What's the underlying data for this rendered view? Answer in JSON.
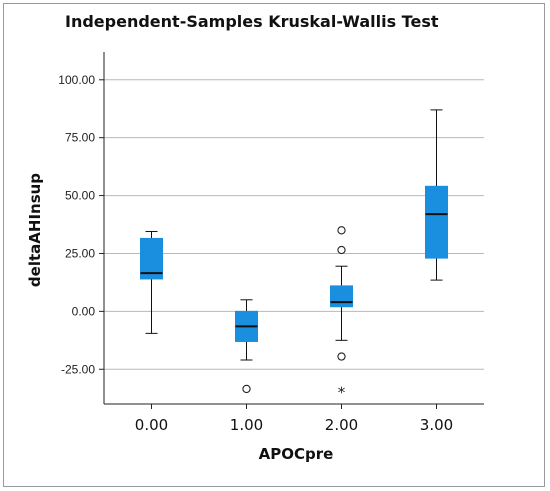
{
  "chart_data": {
    "type": "box",
    "title": "Independent-Samples Kruskal-Wallis Test",
    "xlabel": "APOCpre",
    "ylabel": "deltaAHInsup",
    "ylim": [
      -40,
      112
    ],
    "yticks": [
      "-25.00",
      "0.00",
      "25.00",
      "50.00",
      "75.00",
      "100.00"
    ],
    "ytick_values": [
      -25,
      0,
      25,
      50,
      75,
      100
    ],
    "grid": true,
    "box_color": "#1a8fe0",
    "categories": [
      "0.00",
      "1.00",
      "2.00",
      "3.00"
    ],
    "boxes": [
      {
        "category": "0.00",
        "whisker_low": -9.5,
        "q1": 14,
        "median": 16.5,
        "q3": 31.5,
        "whisker_high": 34.5,
        "outliers": [],
        "extremes": []
      },
      {
        "category": "1.00",
        "whisker_low": -21,
        "q1": -13,
        "median": -6.5,
        "q3": 0,
        "whisker_high": 5,
        "outliers": [
          -33.5
        ],
        "extremes": []
      },
      {
        "category": "2.00",
        "whisker_low": -12.5,
        "q1": 2,
        "median": 4,
        "q3": 11,
        "whisker_high": 19.5,
        "outliers": [
          35,
          26.5,
          -19.5
        ],
        "extremes": [
          -34.5
        ]
      },
      {
        "category": "3.00",
        "whisker_low": 13.5,
        "q1": 23,
        "median": 42,
        "q3": 54,
        "whisker_high": 87,
        "outliers": [],
        "extremes": []
      }
    ]
  }
}
